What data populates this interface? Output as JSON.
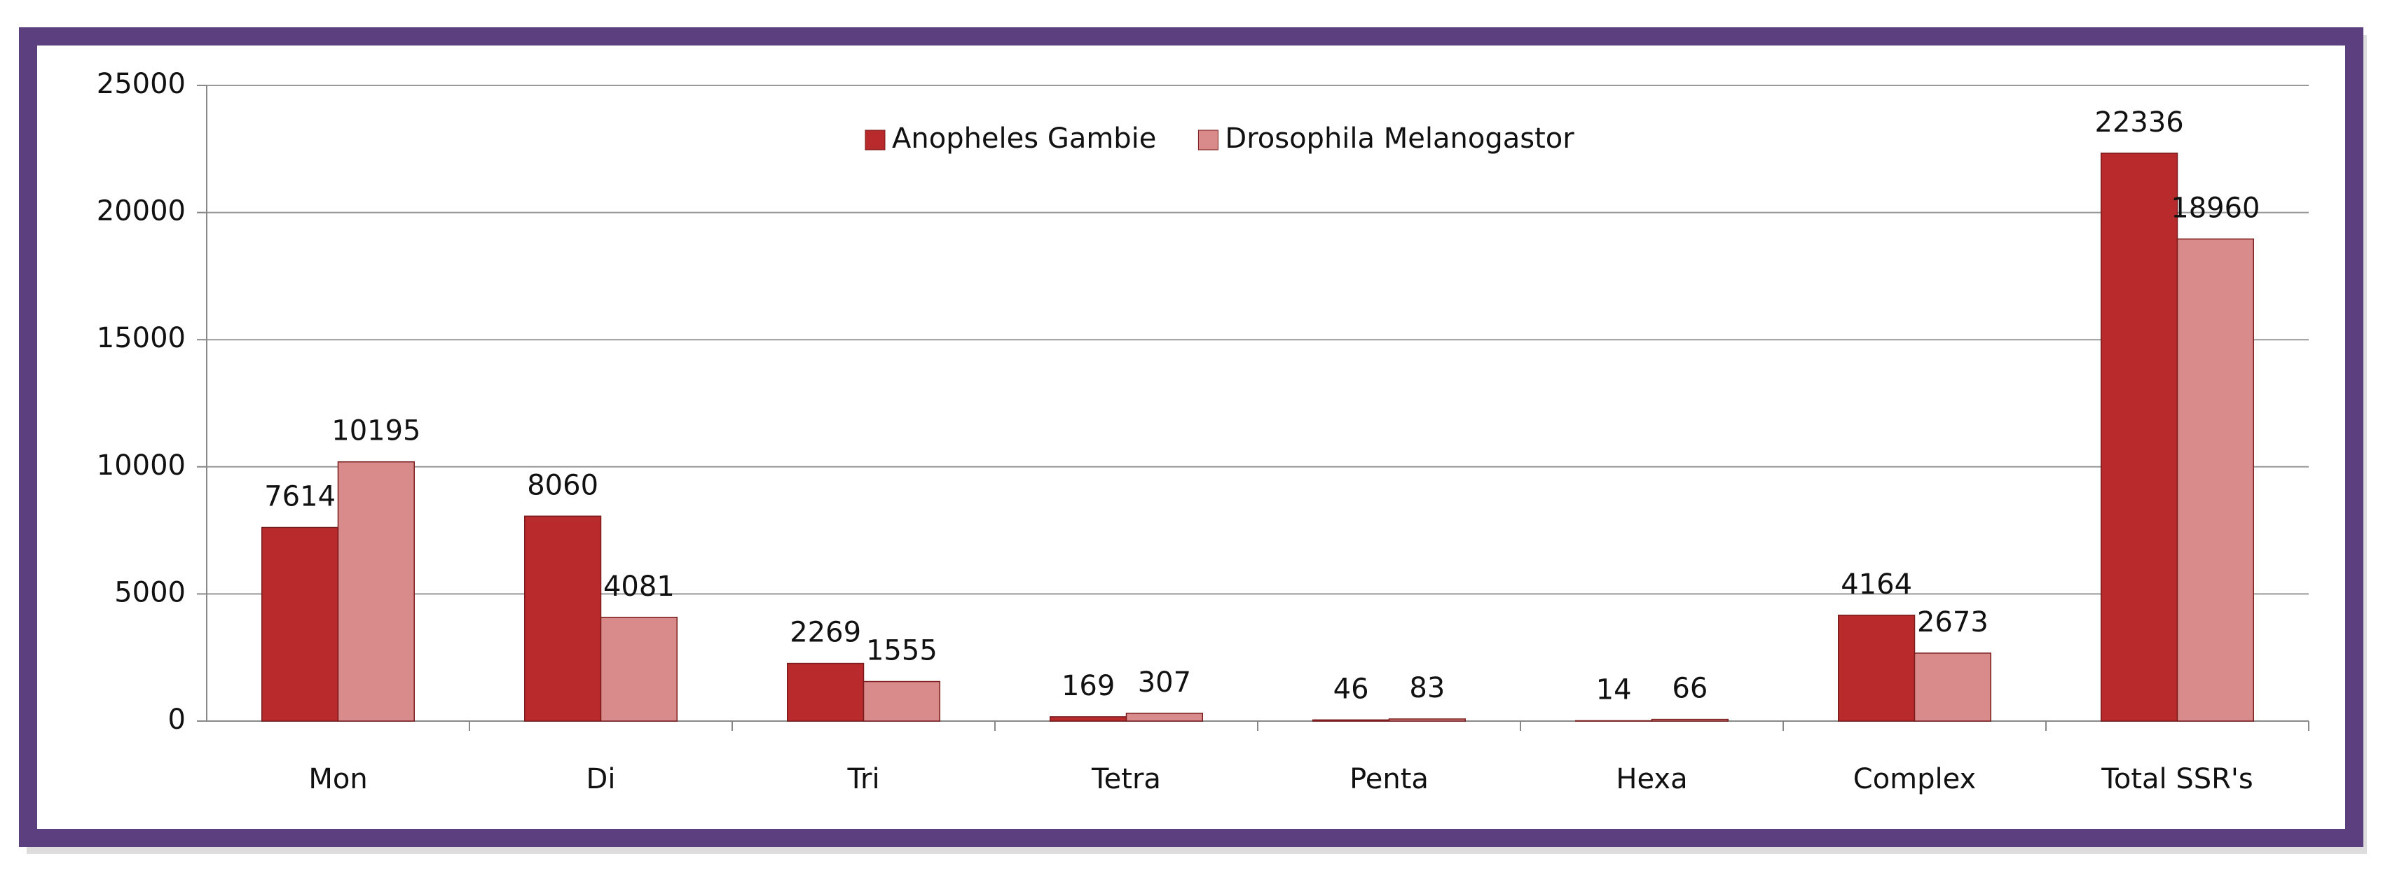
{
  "chart_data": {
    "type": "bar",
    "categories": [
      "Mon",
      "Di",
      "Tri",
      "Tetra",
      "Penta",
      "Hexa",
      "Complex",
      "Total SSR's"
    ],
    "series": [
      {
        "name": "Anopheles Gambie",
        "color": "#b82a2c",
        "values": [
          7614,
          8060,
          2269,
          169,
          46,
          14,
          4164,
          22336
        ]
      },
      {
        "name": "Drosophila Melanogastor",
        "color": "#d98b8b",
        "values": [
          10195,
          4081,
          1555,
          307,
          83,
          66,
          2673,
          18960
        ]
      }
    ],
    "ylim": [
      0,
      25000
    ],
    "yticks": [
      0,
      5000,
      10000,
      15000,
      20000,
      25000
    ],
    "grid": true,
    "legend": "upper center",
    "data_labels": true
  }
}
